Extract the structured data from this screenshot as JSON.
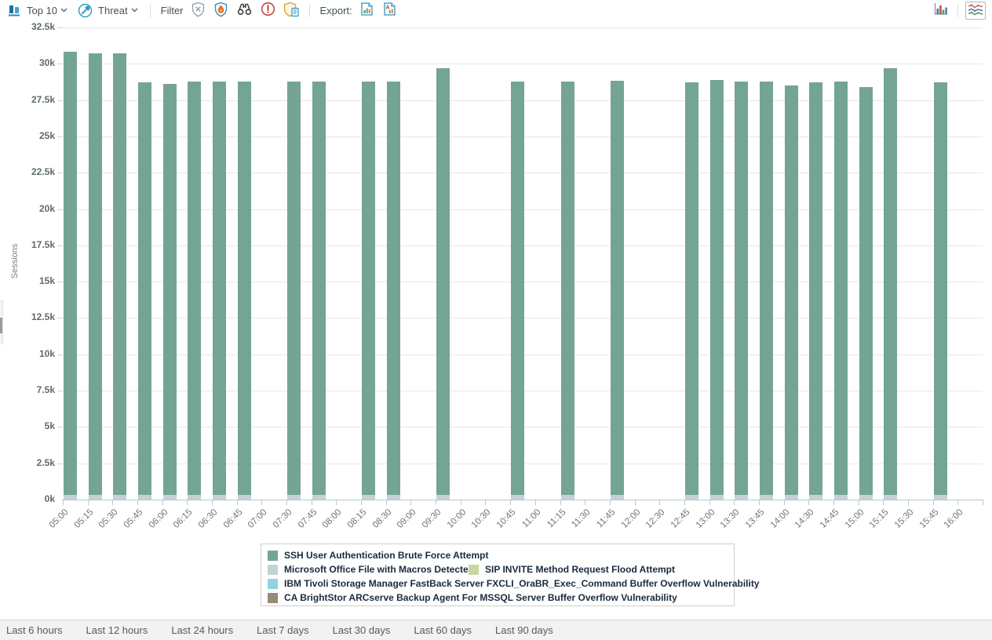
{
  "toolbar": {
    "top_n_label": "Top 10",
    "threat_label": "Threat",
    "filter_label": "Filter",
    "export_label": "Export:",
    "filter_icons": [
      "shield-x-icon",
      "shield-flame-icon",
      "binoculars-icon",
      "alert-circle-icon",
      "shield-document-icon"
    ],
    "export_icons": [
      "export-chart-document-icon",
      "export-pdf-document-icon"
    ],
    "view_icons": [
      "bar-chart-view-icon",
      "line-chart-view-icon"
    ]
  },
  "colors": {
    "accent_blue": "#2e94c0",
    "axis_line": "#b9c9cf",
    "grid_line": "#e7e7e7"
  },
  "chart_data": {
    "type": "bar",
    "stacked": true,
    "title": "",
    "xlabel": "",
    "ylabel": "Sessions",
    "ylim": [
      0,
      32500
    ],
    "ytick_interval": 2500,
    "ytick_labels": [
      "0k",
      "2.5k",
      "5k",
      "7.5k",
      "10k",
      "12.5k",
      "15k",
      "17.5k",
      "20k",
      "22.5k",
      "25k",
      "27.5k",
      "30k",
      "32.5k"
    ],
    "grid": true,
    "legend_position": "bottom",
    "categories": [
      "05:00",
      "05:15",
      "05:30",
      "05:45",
      "06:00",
      "06:15",
      "06:30",
      "06:45",
      "07:00",
      "07:30",
      "07:45",
      "08:00",
      "08:15",
      "08:30",
      "09:00",
      "09:30",
      "10:00",
      "10:30",
      "10:45",
      "11:00",
      "11:15",
      "11:30",
      "11:45",
      "12:00",
      "12:30",
      "12:45",
      "13:00",
      "13:30",
      "13:45",
      "14:00",
      "14:30",
      "14:45",
      "15:00",
      "15:15",
      "15:30",
      "15:45",
      "16:00"
    ],
    "series": [
      {
        "name": "SSH User Authentication Brute Force Attempt",
        "color": "#74a494",
        "values": [
          30500,
          30400,
          30400,
          28400,
          28300,
          28500,
          28500,
          28500,
          0,
          28500,
          28500,
          0,
          28500,
          28500,
          0,
          29400,
          0,
          0,
          28500,
          0,
          28500,
          0,
          28550,
          0,
          0,
          28400,
          28600,
          28500,
          28500,
          28200,
          28400,
          28500,
          28100,
          29400,
          0,
          28400,
          0
        ]
      },
      {
        "name": "Microsoft Office File with Macros Detected",
        "color": "#c3d2d5",
        "values": [
          300,
          300,
          300,
          300,
          300,
          300,
          300,
          300,
          0,
          300,
          300,
          0,
          300,
          300,
          0,
          300,
          0,
          0,
          300,
          0,
          300,
          0,
          300,
          0,
          0,
          300,
          300,
          300,
          300,
          300,
          300,
          300,
          300,
          300,
          0,
          300,
          0
        ]
      },
      {
        "name": "SIP INVITE Method Request Flood Attempt",
        "color": "#c9d6a3",
        "values": [
          0,
          0,
          0,
          0,
          0,
          0,
          0,
          0,
          0,
          0,
          0,
          0,
          0,
          0,
          0,
          0,
          0,
          0,
          0,
          0,
          0,
          0,
          0,
          0,
          0,
          0,
          0,
          0,
          0,
          0,
          0,
          0,
          0,
          0,
          0,
          0,
          0
        ]
      },
      {
        "name": "IBM Tivoli Storage Manager FastBack Server FXCLI_OraBR_Exec_Command Buffer Overflow Vulnerability",
        "color": "#8fd4dd",
        "values": [
          0,
          0,
          0,
          0,
          0,
          0,
          0,
          0,
          0,
          0,
          0,
          0,
          0,
          0,
          0,
          0,
          0,
          0,
          0,
          0,
          0,
          0,
          0,
          0,
          0,
          0,
          0,
          0,
          0,
          0,
          0,
          0,
          0,
          0,
          0,
          0,
          0
        ]
      },
      {
        "name": "CA BrightStor ARCserve Backup Agent For MSSQL Server Buffer Overflow Vulnerability",
        "color": "#958c77",
        "values": [
          0,
          0,
          0,
          0,
          0,
          0,
          0,
          0,
          0,
          0,
          0,
          0,
          0,
          0,
          0,
          0,
          0,
          0,
          0,
          0,
          0,
          0,
          0,
          0,
          0,
          0,
          0,
          0,
          0,
          0,
          0,
          0,
          0,
          0,
          0,
          0,
          0
        ]
      }
    ],
    "legend_rows": [
      [
        0
      ],
      [
        1,
        2
      ],
      [
        3
      ],
      [
        4
      ]
    ],
    "stack_order": [
      1,
      2,
      3,
      4,
      0
    ]
  },
  "footer": {
    "links": [
      "Last 6 hours",
      "Last 12 hours",
      "Last 24 hours",
      "Last 7 days",
      "Last 30 days",
      "Last 60 days",
      "Last 90 days"
    ]
  }
}
